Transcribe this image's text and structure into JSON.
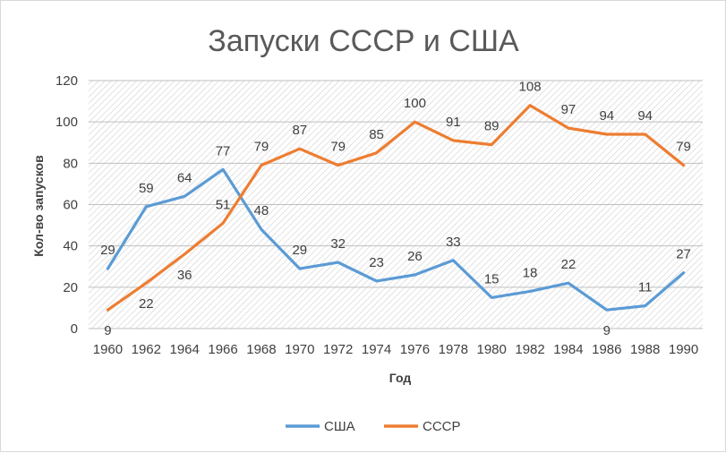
{
  "chart_data": {
    "type": "line",
    "title": "Запуски СССР и США",
    "xlabel": "Год",
    "ylabel": "Кол-во запусков",
    "x": [
      "1960",
      "1962",
      "1964",
      "1966",
      "1968",
      "1970",
      "1972",
      "1974",
      "1976",
      "1978",
      "1980",
      "1982",
      "1984",
      "1986",
      "1988",
      "1990"
    ],
    "ylim": [
      0,
      120
    ],
    "yticks": [
      "0",
      "20",
      "40",
      "60",
      "80",
      "100",
      "120"
    ],
    "grid": true,
    "legend_position": "bottom",
    "series": [
      {
        "name": "США",
        "color": "#5b9bd5",
        "values": [
          29,
          59,
          64,
          77,
          48,
          29,
          32,
          23,
          26,
          33,
          15,
          18,
          22,
          9,
          11,
          27
        ]
      },
      {
        "name": "СССР",
        "color": "#ed7d31",
        "values": [
          9,
          22,
          36,
          51,
          79,
          87,
          79,
          85,
          100,
          91,
          89,
          108,
          97,
          94,
          94,
          79
        ]
      }
    ]
  }
}
